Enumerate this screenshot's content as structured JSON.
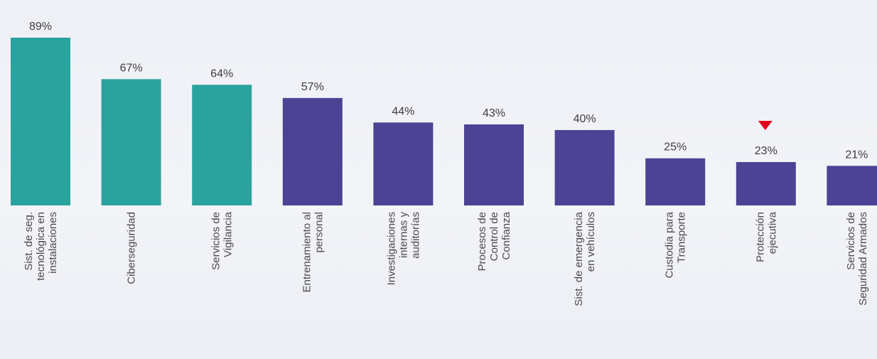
{
  "chart_data": {
    "type": "bar",
    "categories": [
      [
        "Sist. de seg.",
        "tecnológica en",
        "instalaciones"
      ],
      [
        "Ciberseguridad"
      ],
      [
        "Servicios de",
        "Vigilancia"
      ],
      [
        "Entrenamiento al",
        "personal"
      ],
      [
        "Investigaciones",
        "internas y",
        "auditorías"
      ],
      [
        "Procesos de",
        "Control de",
        "Confianza"
      ],
      [
        "Sist. de emergencia",
        "en vehículos"
      ],
      [
        "Custodia para",
        "Transporte"
      ],
      [
        "Protección",
        "ejecutiva"
      ],
      [
        "Servicios de",
        "Seguridad Armados"
      ]
    ],
    "values": [
      89,
      67,
      64,
      57,
      44,
      43,
      40,
      25,
      23,
      21
    ],
    "value_labels": [
      "89%",
      "67%",
      "64%",
      "57%",
      "44%",
      "43%",
      "40%",
      "25%",
      "23%",
      "21%"
    ],
    "ylim": [
      0,
      89
    ],
    "grid": false,
    "legend": "none",
    "highlight_index": 8
  },
  "colors": {
    "teal": "#2aa39f",
    "purple": "#4c4394",
    "marker": "#e0001b",
    "bar_color_by_index": [
      "teal",
      "teal",
      "teal",
      "purple",
      "purple",
      "purple",
      "purple",
      "purple",
      "purple",
      "purple"
    ]
  },
  "icons": {
    "highlight_marker": "red-down-triangle-icon"
  }
}
